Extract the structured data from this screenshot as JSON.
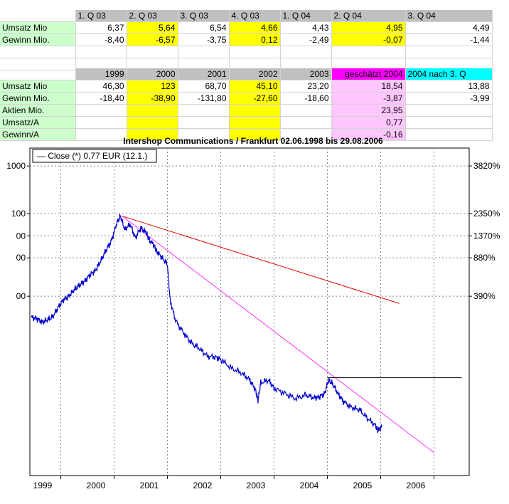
{
  "table1": {
    "headers": [
      "1. Q 03",
      "2. Q 03",
      "3. Q 03",
      "4. Q 03",
      "1. Q 04",
      "2. Q 04",
      "3. Q 04"
    ],
    "rows": [
      {
        "label": "Umsatz Mio",
        "values": [
          "6,37",
          "5,64",
          "6,54",
          "4,66",
          "4,43",
          "4,95",
          "4,49"
        ]
      },
      {
        "label": "Gewinn Mio.",
        "values": [
          "-8,40",
          "-6,57",
          "-3,75",
          "0,12",
          "-2,49",
          "-0,07",
          "-1,44"
        ]
      }
    ]
  },
  "table2": {
    "headers": [
      "1999",
      "2000",
      "2001",
      "2002",
      "2003",
      "geschätzt 2004",
      "2004 nach 3. Q"
    ],
    "rows": [
      {
        "label": "Umsatz Mio",
        "values": [
          "46,30",
          "123",
          "68,70",
          "45,10",
          "23,20",
          "18,54",
          "13,88"
        ]
      },
      {
        "label": "Gewinn Mio.",
        "values": [
          "-18,40",
          "-38,90",
          "-131,80",
          "-27,60",
          "-18,60",
          "-3,87",
          "-3,99"
        ]
      },
      {
        "label": "Aktien Mio.",
        "values": [
          "",
          "",
          "",
          "",
          "",
          "23,95",
          ""
        ]
      },
      {
        "label": "Umsatz/A",
        "values": [
          "",
          "",
          "",
          "",
          "",
          "0,77",
          ""
        ]
      },
      {
        "label": "Gewinn/A",
        "values": [
          "",
          "",
          "",
          "",
          "",
          "-0,16",
          ""
        ]
      }
    ]
  },
  "colors": {
    "header_gray": "#c0c0c0",
    "highlight_yellow": "#ffff00",
    "estimate_magenta": "#ff00ff",
    "estimate_pink": "#ffc6ff",
    "after_q3_cyan": "#00ffff",
    "label_green": "#ccffcc",
    "price_line": "#0000cc",
    "trend_red": "#dd0000",
    "trend_magenta": "#ff33ff",
    "resistance_black": "#000000"
  },
  "chart_data": {
    "type": "line",
    "title": "Intershop Communications / Frankfurt 02.06.1998 bis 29.08.2006",
    "legend": "— Close (*) 0,77 EUR (12.1.)",
    "legend_position": "top-left",
    "x_ticks": [
      "1999",
      "2000",
      "2001",
      "2002",
      "2003",
      "2004",
      "2005",
      "2006"
    ],
    "y_left_ticks": [
      "1000",
      "100",
      "00",
      "00",
      "00"
    ],
    "y_right_ticks": [
      "3820%",
      "2350%",
      "1370%",
      "880%",
      "390%"
    ],
    "x_range": [
      1998.42,
      2006.66
    ],
    "y_scale": "log",
    "grid": true,
    "series": [
      {
        "name": "Close",
        "x": [
          1998.45,
          1998.55,
          1998.65,
          1998.75,
          1998.85,
          1998.95,
          1999.05,
          1999.15,
          1999.25,
          1999.35,
          1999.45,
          1999.55,
          1999.65,
          1999.75,
          1999.85,
          1999.95,
          2000.05,
          2000.12,
          2000.2,
          2000.3,
          2000.4,
          2000.5,
          2000.6,
          2000.65,
          2000.75,
          2000.8,
          2000.9,
          2001.0,
          2001.05,
          2001.15,
          2001.3,
          2001.45,
          2001.6,
          2001.75,
          2001.9,
          2002.0,
          2002.2,
          2002.4,
          2002.55,
          2002.65,
          2002.7,
          2002.75,
          2002.9,
          2003.0,
          2003.2,
          2003.4,
          2003.6,
          2003.75,
          2003.85,
          2003.95,
          2004.02,
          2004.1,
          2004.2,
          2004.3,
          2004.45,
          2004.6,
          2004.75,
          2004.9,
          2004.95,
          2005.02
        ],
        "y": [
          14.3,
          14.0,
          13.0,
          13.6,
          14.5,
          17.5,
          20.5,
          22.0,
          25.0,
          27.5,
          30.0,
          34.0,
          37.0,
          45.0,
          56.0,
          68.0,
          97.0,
          112.0,
          85.0,
          95.0,
          72.0,
          88.0,
          80.0,
          70.0,
          62.0,
          55.0,
          48.0,
          42.0,
          20.5,
          13.5,
          10.5,
          8.5,
          7.6,
          6.5,
          6.4,
          6.1,
          5.1,
          4.6,
          4.0,
          3.3,
          2.65,
          3.8,
          4.0,
          3.4,
          3.05,
          2.75,
          2.95,
          2.8,
          2.85,
          3.05,
          4.0,
          3.7,
          3.05,
          2.6,
          2.3,
          2.2,
          1.85,
          1.6,
          1.45,
          1.55
        ]
      }
    ],
    "trendlines": [
      {
        "name": "Trend red",
        "x": [
          2000.15,
          2005.35
        ],
        "y": [
          112.0,
          19.0
        ]
      },
      {
        "name": "Trend magenta",
        "x": [
          2000.15,
          2006.0
        ],
        "y": [
          112.0,
          0.92
        ]
      },
      {
        "name": "Resistance",
        "x": [
          2004.0,
          2006.52
        ],
        "y": [
          4.2,
          4.2
        ]
      }
    ]
  }
}
